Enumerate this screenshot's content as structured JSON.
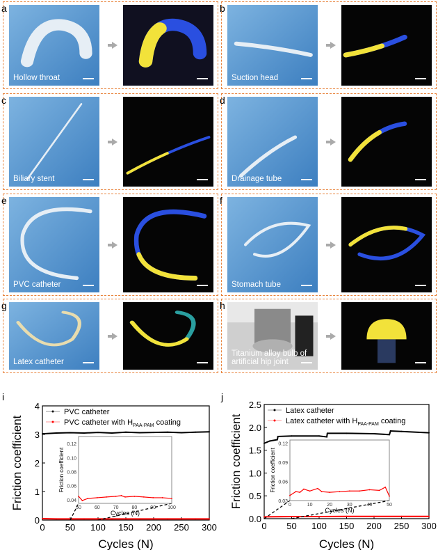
{
  "panels": [
    {
      "letter": "a",
      "label": "Hollow throat"
    },
    {
      "letter": "b",
      "label": "Suction head"
    },
    {
      "letter": "c",
      "label": "Biliary stent"
    },
    {
      "letter": "d",
      "label": "Drainage tube"
    },
    {
      "letter": "e",
      "label": "PVC catheter"
    },
    {
      "letter": "f",
      "label": "Stomach tube"
    },
    {
      "letter": "g",
      "label": "Latex catheter"
    },
    {
      "letter": "h",
      "label": "Titanium alloy bulb of artificial hip joint"
    }
  ],
  "colors": {
    "panel_border": "#e8823a",
    "untreated": "#000000",
    "coated": "#ff0000",
    "fluorescent_coating": "#f2e23a",
    "photo_bg": "#5b9bd5"
  },
  "chart_data": [
    {
      "letter": "i",
      "type": "line",
      "xlabel": "Cycles (N)",
      "ylabel": "Friction coefficient",
      "xlim": [
        0,
        300
      ],
      "ylim": [
        0,
        4
      ],
      "xticks": [
        0,
        50,
        100,
        150,
        200,
        250,
        300
      ],
      "yticks": [
        0,
        1,
        2,
        3,
        4
      ],
      "legend_position": "top-left",
      "series": [
        {
          "name": "PVC catheter",
          "color": "#000000",
          "x": [
            0,
            25,
            50,
            75,
            100,
            125,
            150,
            175,
            200,
            225,
            250,
            275,
            300
          ],
          "y": [
            3.02,
            3.05,
            3.06,
            3.05,
            3.07,
            3.05,
            3.08,
            3.06,
            3.07,
            3.08,
            3.06,
            3.08,
            3.09
          ]
        },
        {
          "name": "PVC catheter with H",
          "name_sub": "PAA-PAM",
          "name_suffix": " coating",
          "color": "#ff0000",
          "x": [
            0,
            25,
            50,
            75,
            100,
            125,
            150,
            175,
            200,
            225,
            250,
            275,
            300
          ],
          "y": [
            0.05,
            0.04,
            0.04,
            0.04,
            0.04,
            0.04,
            0.04,
            0.04,
            0.04,
            0.04,
            0.04,
            0.04,
            0.04
          ]
        }
      ],
      "inset": {
        "xlabel": "Cycles (N)",
        "ylabel": "Friction coefficient",
        "xlim": [
          50,
          100
        ],
        "ylim": [
          0.035,
          0.13
        ],
        "xticks": [
          50,
          60,
          70,
          80,
          90,
          100
        ],
        "yticks": [
          0.04,
          0.06,
          0.08,
          0.1,
          0.12
        ],
        "ytick_labels": [
          "0.04",
          "0.06",
          "0.08",
          "0.10",
          "0.12"
        ],
        "x": [
          50,
          52,
          55,
          60,
          65,
          70,
          73,
          75,
          80,
          85,
          90,
          95,
          100
        ],
        "y": [
          0.045,
          0.039,
          0.042,
          0.043,
          0.044,
          0.045,
          0.046,
          0.044,
          0.045,
          0.044,
          0.043,
          0.043,
          0.042
        ]
      }
    },
    {
      "letter": "j",
      "type": "line",
      "xlabel": "Cycles (N)",
      "ylabel": "Friction coefficient",
      "xlim": [
        0,
        300
      ],
      "ylim": [
        0,
        2.5
      ],
      "xticks": [
        0,
        50,
        100,
        150,
        200,
        250,
        300
      ],
      "yticks": [
        0,
        0.5,
        1.0,
        1.5,
        2.0,
        2.5
      ],
      "legend_position": "top-left",
      "series": [
        {
          "name": "Latex catheter",
          "color": "#000000",
          "x": [
            0,
            10,
            24,
            25,
            50,
            100,
            114,
            115,
            150,
            200,
            228,
            230,
            250,
            300
          ],
          "y": [
            1.65,
            1.7,
            1.73,
            1.8,
            1.81,
            1.81,
            1.79,
            1.87,
            1.87,
            1.86,
            1.84,
            1.92,
            1.91,
            1.88
          ]
        },
        {
          "name": "Latex catheter with H",
          "name_sub": "PAA-PAM",
          "name_suffix": " coating",
          "color": "#ff0000",
          "x": [
            0,
            50,
            100,
            150,
            200,
            250,
            300
          ],
          "y": [
            0.04,
            0.045,
            0.045,
            0.05,
            0.05,
            0.05,
            0.05
          ]
        }
      ],
      "inset": {
        "xlabel": "Cycles (N)",
        "ylabel": "Friction coefficient",
        "xlim": [
          0,
          50
        ],
        "ylim": [
          0.03,
          0.125
        ],
        "xticks": [
          0,
          10,
          20,
          30,
          40,
          50
        ],
        "yticks": [
          0.03,
          0.06,
          0.09,
          0.12
        ],
        "ytick_labels": [
          "0.03",
          "0.06",
          "0.09",
          "0.12"
        ],
        "x": [
          0,
          3,
          5,
          7,
          10,
          14,
          16,
          20,
          25,
          30,
          35,
          40,
          45,
          48,
          50
        ],
        "y": [
          0.038,
          0.044,
          0.043,
          0.048,
          0.045,
          0.049,
          0.044,
          0.043,
          0.044,
          0.045,
          0.045,
          0.047,
          0.046,
          0.051,
          0.037
        ]
      }
    }
  ]
}
